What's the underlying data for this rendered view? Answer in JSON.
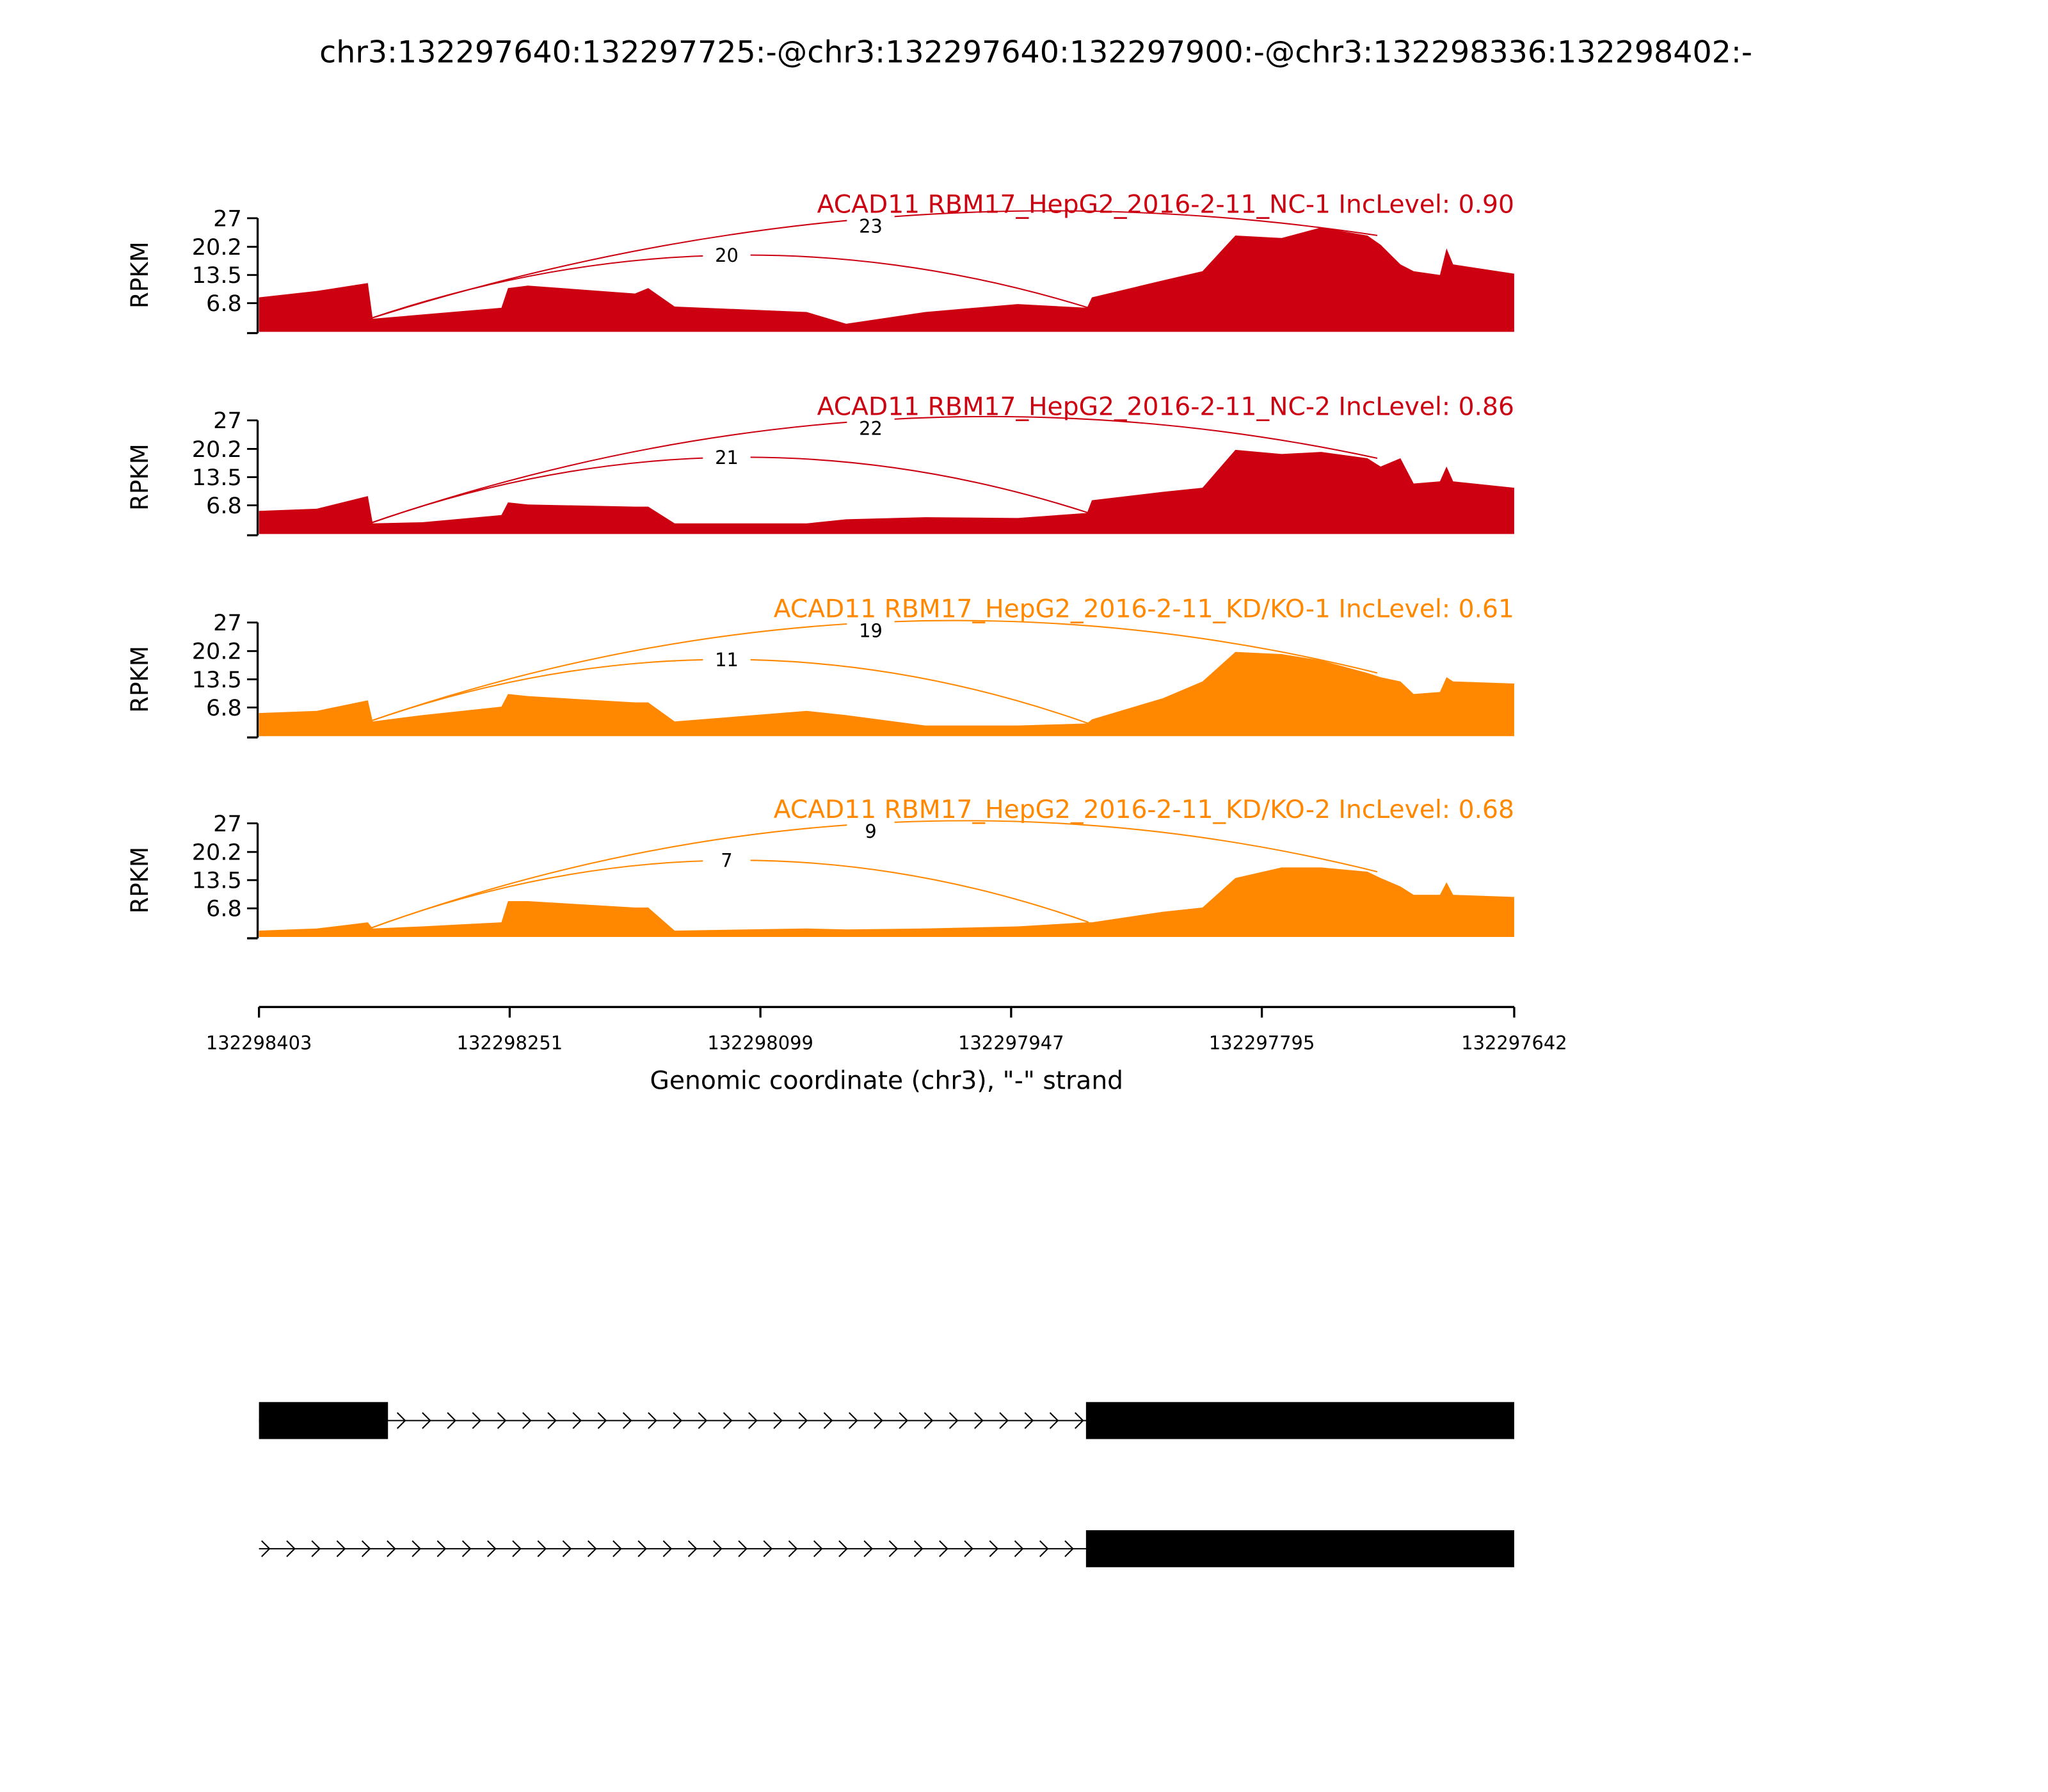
{
  "title": "chr3:132297640:132297725:-@chr3:132297640:132297900:-@chr3:132298336:132298402:-",
  "chart_data": {
    "type": "area",
    "title": "chr3:132297640:132297725:-@chr3:132297640:132297900:-@chr3:132298336:132298402:-",
    "xlabel": "Genomic coordinate (chr3), \"-\" strand",
    "ylabel": "RPKM",
    "xlim": [
      132298403,
      132297642
    ],
    "x_ticks": [
      "132298403",
      "132298251",
      "132298099",
      "132297947",
      "132297795",
      "132297642"
    ],
    "x_tick_values": [
      132298403,
      132298251,
      132298099,
      132297947,
      132297795,
      132297642
    ],
    "ylim": [
      0,
      27
    ],
    "y_ticks": [
      "27",
      "20.2",
      "13.5",
      "6.8"
    ],
    "y_tick_values": [
      27,
      20.2,
      13.5,
      6.8
    ],
    "coords": [
      132298403,
      132298368,
      132298337,
      132298334,
      132298304,
      132298256,
      132298252,
      132298240,
      132298175,
      132298167,
      132298151,
      132298071,
      132298047,
      132297999,
      132297943,
      132297901,
      132297898,
      132297855,
      132297831,
      132297811,
      132297783,
      132297759,
      132297731,
      132297723,
      132297711,
      132297703,
      132297687,
      132297683,
      132297679,
      132297642
    ],
    "series": [
      {
        "name": "ACAD11 RBM17_HepG2_2016-2-11_NC-1 IncLevel: 0.90",
        "color": "#cc0011",
        "values": [
          8.2,
          9.7,
          11.6,
          3.1,
          4.1,
          5.7,
          10.4,
          11,
          9.1,
          10.4,
          6,
          4.7,
          1.9,
          4.7,
          6.6,
          5.7,
          8.2,
          12.2,
          14.4,
          22.9,
          22.3,
          24.8,
          22.9,
          20.7,
          16,
          14.4,
          13.5,
          19.8,
          16,
          13.8
        ],
        "junctions": [
          {
            "from": 132298336,
            "to": 132297900,
            "count": "20"
          },
          {
            "from": 132298336,
            "to": 132297725,
            "count": "23"
          }
        ]
      },
      {
        "name": "ACAD11 RBM17_HepG2_2016-2-11_NC-2 IncLevel: 0.86",
        "color": "#cc0011",
        "values": [
          5.5,
          6,
          9,
          2.5,
          2.8,
          4.5,
          7.5,
          7,
          6.5,
          6.5,
          2.5,
          2.5,
          3.5,
          4,
          3.8,
          5,
          8,
          10,
          11,
          20,
          19,
          19.5,
          18,
          16,
          18,
          12,
          12.5,
          16,
          12.5,
          11
        ],
        "junctions": [
          {
            "from": 132298336,
            "to": 132297900,
            "count": "21"
          },
          {
            "from": 132298336,
            "to": 132297725,
            "count": "22"
          }
        ]
      },
      {
        "name": "ACAD11 RBM17_HepG2_2016-2-11_KD/KO-1 IncLevel: 0.61",
        "color": "#ff8800",
        "values": [
          5.5,
          6,
          8.5,
          3.5,
          5,
          7,
          10,
          9.5,
          8,
          8,
          3.5,
          6,
          5,
          2.5,
          2.5,
          3,
          4,
          9,
          13,
          20,
          19.5,
          18,
          15,
          14,
          13,
          10,
          10.5,
          14,
          13,
          12.5
        ],
        "junctions": [
          {
            "from": 132298336,
            "to": 132297900,
            "count": "11"
          },
          {
            "from": 132298336,
            "to": 132297725,
            "count": "19"
          }
        ]
      },
      {
        "name": "ACAD11 RBM17_HepG2_2016-2-11_KD/KO-2 IncLevel: 0.68",
        "color": "#ff8800",
        "values": [
          1.5,
          2,
          3.5,
          2,
          2.5,
          3.5,
          8.5,
          8.5,
          7,
          7,
          1.5,
          2,
          1.8,
          2,
          2.5,
          3.5,
          3.5,
          6,
          7,
          14,
          16.5,
          16.5,
          15.5,
          14,
          12,
          10,
          10,
          13,
          10,
          9.5
        ],
        "junctions": [
          {
            "from": 132298336,
            "to": 132297900,
            "count": "7"
          },
          {
            "from": 132298336,
            "to": 132297725,
            "count": "9"
          }
        ]
      }
    ],
    "gene_models": [
      {
        "exons": [
          [
            132298403,
            132298301
          ],
          [
            132297900,
            132297642
          ]
        ]
      },
      {
        "exons": [
          [
            132297900,
            132297642
          ]
        ]
      }
    ]
  }
}
